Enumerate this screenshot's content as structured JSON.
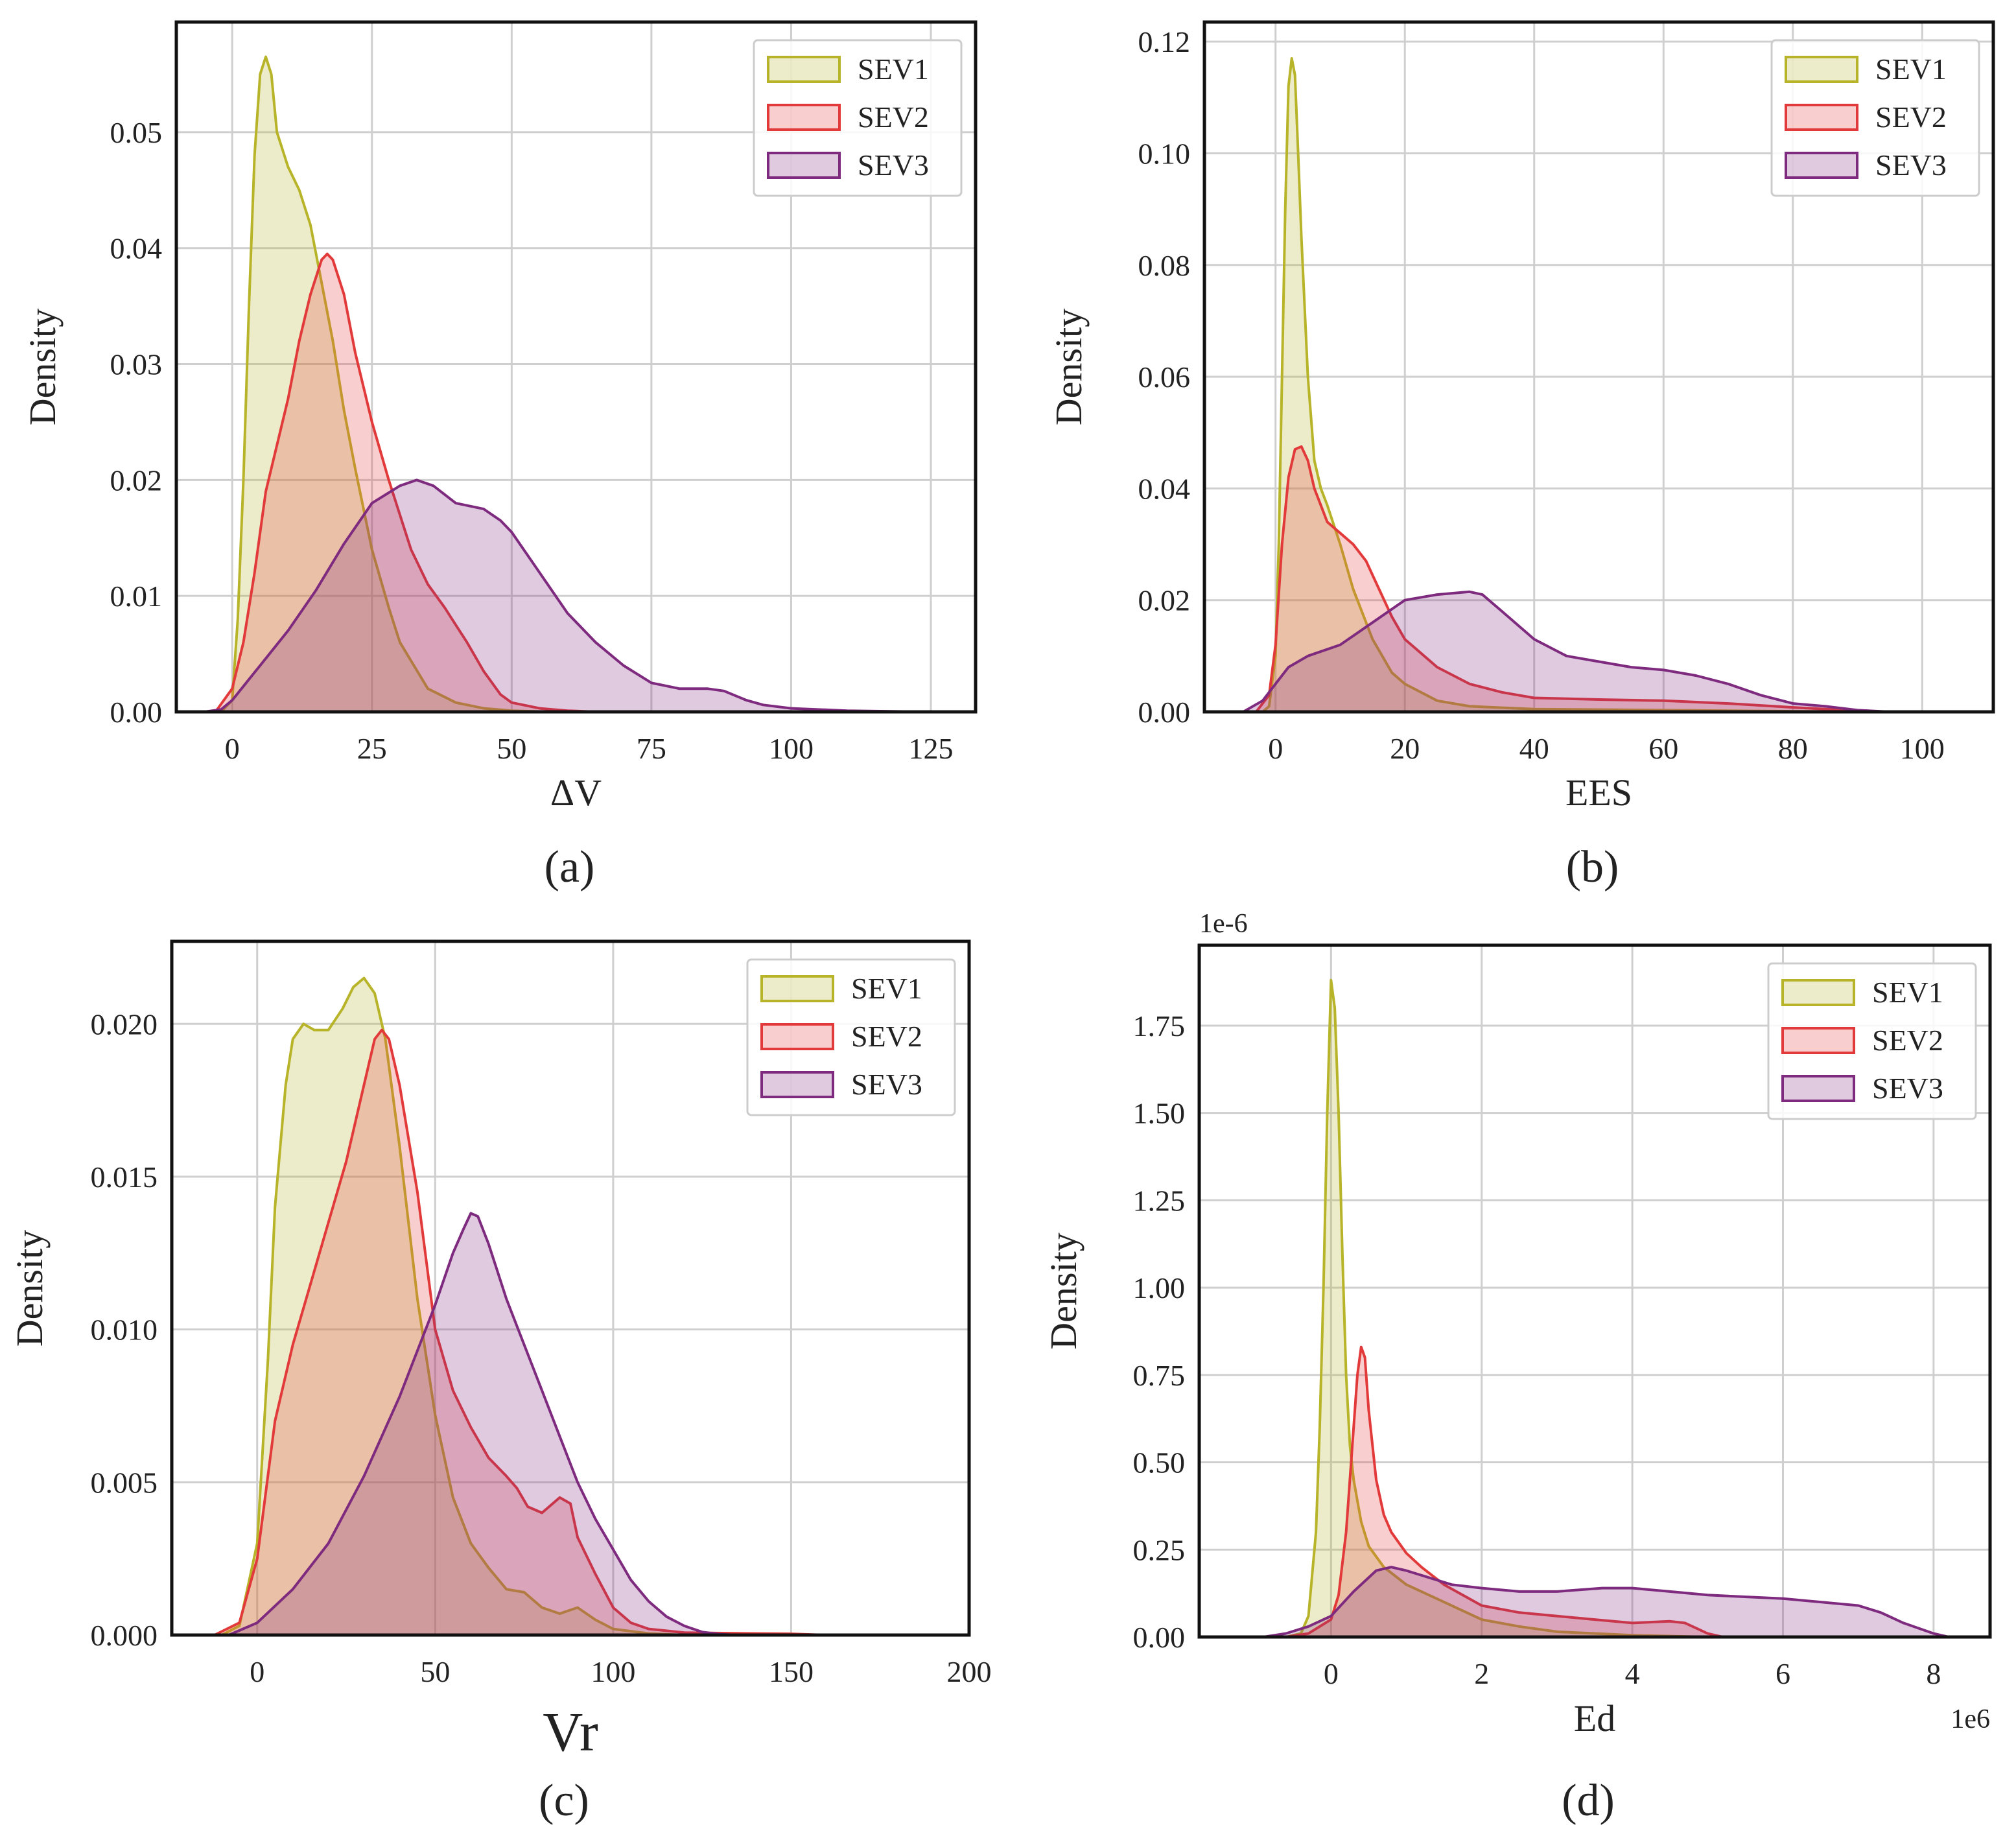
{
  "colors": {
    "SEV1": "#b8b42a",
    "SEV2": "#e23a3a",
    "SEV3": "#7e2a7e",
    "grid": "#cfcfcf",
    "frame": "#111111"
  },
  "chart_data": [
    {
      "id": "a",
      "type": "area",
      "panel_label": "(a)",
      "xlabel": "ΔV",
      "ylabel": "Density",
      "xlim": [
        -10,
        133
      ],
      "ylim": [
        0,
        0.0595
      ],
      "xticks": [
        0,
        25,
        50,
        75,
        100,
        125
      ],
      "xtick_labels": [
        "0",
        "25",
        "50",
        "75",
        "100",
        "125"
      ],
      "yticks": [
        0,
        0.01,
        0.02,
        0.03,
        0.04,
        0.05
      ],
      "ytick_labels": [
        "0.00",
        "0.01",
        "0.02",
        "0.03",
        "0.04",
        "0.05"
      ],
      "legend": {
        "position": "top-right",
        "labels": [
          "SEV1",
          "SEV2",
          "SEV3"
        ]
      },
      "series": [
        {
          "name": "SEV1",
          "x": [
            -2,
            0,
            1,
            2,
            3,
            4,
            5,
            6,
            7,
            8,
            10,
            12,
            14,
            16,
            18,
            20,
            22,
            25,
            28,
            30,
            35,
            40,
            45,
            50,
            55,
            60
          ],
          "y": [
            0,
            0.001,
            0.008,
            0.02,
            0.035,
            0.048,
            0.055,
            0.0565,
            0.055,
            0.05,
            0.047,
            0.045,
            0.042,
            0.037,
            0.032,
            0.026,
            0.021,
            0.014,
            0.009,
            0.006,
            0.002,
            0.0008,
            0.0003,
            0.0001,
            3e-05,
            0
          ]
        },
        {
          "name": "SEV2",
          "x": [
            -3,
            0,
            2,
            4,
            6,
            8,
            10,
            12,
            14,
            16,
            17,
            18,
            20,
            22,
            25,
            28,
            30,
            32,
            35,
            38,
            40,
            42,
            45,
            48,
            50,
            55,
            60,
            65
          ],
          "y": [
            0,
            0.002,
            0.006,
            0.012,
            0.019,
            0.023,
            0.027,
            0.032,
            0.036,
            0.039,
            0.0395,
            0.039,
            0.036,
            0.031,
            0.025,
            0.02,
            0.017,
            0.014,
            0.011,
            0.009,
            0.0075,
            0.006,
            0.0035,
            0.0015,
            0.0008,
            0.0003,
            0.0001,
            0
          ]
        },
        {
          "name": "SEV3",
          "x": [
            -5,
            -2,
            0,
            5,
            10,
            15,
            20,
            25,
            30,
            33,
            36,
            40,
            45,
            48,
            50,
            55,
            60,
            65,
            70,
            75,
            80,
            85,
            88,
            92,
            95,
            100,
            110,
            120,
            125
          ],
          "y": [
            0,
            0.0002,
            0.001,
            0.004,
            0.007,
            0.0105,
            0.0145,
            0.018,
            0.0195,
            0.02,
            0.0195,
            0.018,
            0.0175,
            0.0165,
            0.0155,
            0.012,
            0.0085,
            0.006,
            0.004,
            0.0025,
            0.002,
            0.002,
            0.0018,
            0.001,
            0.0006,
            0.0003,
            0.0001,
            3e-05,
            0
          ]
        }
      ]
    },
    {
      "id": "b",
      "type": "area",
      "panel_label": "(b)",
      "xlabel": "EES",
      "ylabel": "Density",
      "xlim": [
        -11,
        111
      ],
      "ylim": [
        0,
        0.1235
      ],
      "xticks": [
        0,
        20,
        40,
        60,
        80,
        100
      ],
      "xtick_labels": [
        "0",
        "20",
        "40",
        "60",
        "80",
        "100"
      ],
      "yticks": [
        0,
        0.02,
        0.04,
        0.06,
        0.08,
        0.1,
        0.12
      ],
      "ytick_labels": [
        "0.00",
        "0.02",
        "0.04",
        "0.06",
        "0.08",
        "0.10",
        "0.12"
      ],
      "legend": {
        "position": "top-right",
        "labels": [
          "SEV1",
          "SEV2",
          "SEV3"
        ]
      },
      "series": [
        {
          "name": "SEV1",
          "x": [
            -2,
            -1,
            0,
            0.5,
            1,
            1.5,
            2,
            2.5,
            3,
            3.5,
            4,
            5,
            6,
            7,
            8,
            10,
            12,
            15,
            18,
            20,
            25,
            30,
            40,
            60,
            80,
            100
          ],
          "y": [
            0,
            0.001,
            0.01,
            0.03,
            0.06,
            0.09,
            0.112,
            0.117,
            0.114,
            0.1,
            0.085,
            0.06,
            0.045,
            0.04,
            0.037,
            0.03,
            0.022,
            0.013,
            0.007,
            0.005,
            0.002,
            0.001,
            0.0005,
            0.0003,
            0.0001,
            0
          ]
        },
        {
          "name": "SEV2",
          "x": [
            -3,
            -1,
            0,
            1,
            2,
            3,
            4,
            5,
            6,
            8,
            10,
            12,
            14,
            16,
            18,
            20,
            25,
            30,
            35,
            40,
            50,
            60,
            70,
            80,
            90,
            95
          ],
          "y": [
            0,
            0.003,
            0.012,
            0.03,
            0.042,
            0.047,
            0.0475,
            0.045,
            0.04,
            0.034,
            0.032,
            0.03,
            0.027,
            0.022,
            0.017,
            0.013,
            0.008,
            0.005,
            0.0035,
            0.0025,
            0.0022,
            0.002,
            0.0015,
            0.0008,
            0.0002,
            0
          ]
        },
        {
          "name": "SEV3",
          "x": [
            -5,
            -2,
            0,
            2,
            5,
            10,
            15,
            20,
            25,
            30,
            32,
            35,
            40,
            45,
            50,
            55,
            60,
            65,
            70,
            75,
            80,
            85,
            90,
            95
          ],
          "y": [
            0,
            0.002,
            0.005,
            0.008,
            0.01,
            0.012,
            0.016,
            0.02,
            0.021,
            0.0215,
            0.021,
            0.018,
            0.013,
            0.01,
            0.009,
            0.008,
            0.0075,
            0.0065,
            0.005,
            0.003,
            0.0015,
            0.001,
            0.0003,
            0
          ]
        }
      ]
    },
    {
      "id": "c",
      "type": "area",
      "panel_label": "(c)",
      "xlabel": "Vr",
      "ylabel": "Density",
      "xlim": [
        -24,
        200
      ],
      "ylim": [
        0,
        0.0227
      ],
      "xticks": [
        0,
        50,
        100,
        150,
        200
      ],
      "xtick_labels": [
        "0",
        "50",
        "100",
        "150",
        "200"
      ],
      "yticks": [
        0,
        0.005,
        0.01,
        0.015,
        0.02
      ],
      "ytick_labels": [
        "0.000",
        "0.005",
        "0.010",
        "0.015",
        "0.020"
      ],
      "legend": {
        "position": "top-right",
        "labels": [
          "SEV1",
          "SEV2",
          "SEV3"
        ]
      },
      "series": [
        {
          "name": "SEV1",
          "x": [
            -10,
            -5,
            0,
            3,
            5,
            8,
            10,
            13,
            16,
            20,
            24,
            27,
            30,
            33,
            36,
            40,
            45,
            50,
            55,
            60,
            65,
            70,
            75,
            80,
            85,
            90,
            95,
            100,
            110,
            120
          ],
          "y": [
            0,
            0.0003,
            0.003,
            0.009,
            0.014,
            0.018,
            0.0195,
            0.02,
            0.0198,
            0.0198,
            0.0205,
            0.0212,
            0.0215,
            0.021,
            0.0195,
            0.016,
            0.011,
            0.0072,
            0.0045,
            0.003,
            0.0022,
            0.0015,
            0.0014,
            0.0009,
            0.0007,
            0.0009,
            0.0005,
            0.0002,
            5e-05,
            0
          ]
        },
        {
          "name": "SEV2",
          "x": [
            -12,
            -5,
            0,
            5,
            10,
            15,
            20,
            25,
            30,
            33,
            35,
            37,
            40,
            45,
            50,
            55,
            60,
            65,
            70,
            73,
            76,
            80,
            82,
            85,
            88,
            90,
            95,
            100,
            105,
            110,
            120,
            140,
            150,
            160
          ],
          "y": [
            0,
            0.0004,
            0.0025,
            0.007,
            0.0095,
            0.0115,
            0.0135,
            0.0155,
            0.018,
            0.0195,
            0.0198,
            0.0195,
            0.018,
            0.0145,
            0.01,
            0.008,
            0.0068,
            0.0058,
            0.0052,
            0.0048,
            0.0042,
            0.004,
            0.0042,
            0.0045,
            0.0043,
            0.0032,
            0.002,
            0.0009,
            0.0004,
            0.0002,
            8e-05,
            5e-05,
            4e-05,
            0
          ]
        },
        {
          "name": "SEV3",
          "x": [
            -8,
            0,
            10,
            20,
            30,
            40,
            50,
            55,
            58,
            60,
            62,
            65,
            70,
            75,
            80,
            85,
            90,
            95,
            100,
            105,
            110,
            115,
            120,
            125,
            130,
            135
          ],
          "y": [
            0,
            0.0004,
            0.0015,
            0.003,
            0.0052,
            0.0078,
            0.0108,
            0.0125,
            0.0133,
            0.0138,
            0.0137,
            0.0128,
            0.011,
            0.0095,
            0.008,
            0.0065,
            0.005,
            0.0038,
            0.0028,
            0.0018,
            0.0011,
            0.0006,
            0.0003,
            0.0001,
            3e-05,
            0
          ]
        }
      ]
    },
    {
      "id": "d",
      "type": "area",
      "panel_label": "(d)",
      "xlabel": "Ed",
      "ylabel": "Density",
      "x_offset_label": "1e6",
      "y_offset_label": "1e-6",
      "xlim": [
        -1.75,
        8.75
      ],
      "ylim": [
        0,
        1.98
      ],
      "xticks": [
        0,
        2,
        4,
        6,
        8
      ],
      "xtick_labels": [
        "0",
        "2",
        "4",
        "6",
        "8"
      ],
      "yticks": [
        0,
        0.25,
        0.5,
        0.75,
        1.0,
        1.25,
        1.5,
        1.75
      ],
      "ytick_labels": [
        "0.00",
        "0.25",
        "0.50",
        "0.75",
        "1.00",
        "1.25",
        "1.50",
        "1.75"
      ],
      "legend": {
        "position": "top-right",
        "labels": [
          "SEV1",
          "SEV2",
          "SEV3"
        ]
      },
      "series": [
        {
          "name": "SEV1",
          "x": [
            -0.6,
            -0.4,
            -0.3,
            -0.2,
            -0.15,
            -0.1,
            -0.05,
            0,
            0.05,
            0.1,
            0.15,
            0.2,
            0.25,
            0.3,
            0.4,
            0.5,
            0.7,
            1.0,
            1.5,
            2.0,
            2.5,
            3.0,
            4.0,
            5.0
          ],
          "y": [
            0,
            0.01,
            0.06,
            0.3,
            0.6,
            1.0,
            1.5,
            1.88,
            1.8,
            1.5,
            1.1,
            0.75,
            0.55,
            0.45,
            0.33,
            0.26,
            0.2,
            0.15,
            0.1,
            0.05,
            0.03,
            0.015,
            0.005,
            0
          ]
        },
        {
          "name": "SEV2",
          "x": [
            -0.6,
            -0.3,
            0,
            0.1,
            0.2,
            0.3,
            0.35,
            0.4,
            0.45,
            0.5,
            0.6,
            0.7,
            0.8,
            1.0,
            1.2,
            1.5,
            2.0,
            2.5,
            3.0,
            3.5,
            4.0,
            4.5,
            4.7,
            5.0,
            5.2
          ],
          "y": [
            0,
            0.01,
            0.05,
            0.12,
            0.3,
            0.6,
            0.75,
            0.83,
            0.8,
            0.65,
            0.45,
            0.35,
            0.3,
            0.24,
            0.2,
            0.15,
            0.09,
            0.07,
            0.06,
            0.05,
            0.04,
            0.045,
            0.04,
            0.01,
            0
          ]
        },
        {
          "name": "SEV3",
          "x": [
            -0.9,
            -0.6,
            -0.3,
            0,
            0.3,
            0.6,
            0.8,
            1.0,
            1.3,
            1.6,
            2.0,
            2.5,
            3.0,
            3.6,
            4.0,
            4.5,
            5.0,
            6.0,
            7.0,
            7.3,
            7.6,
            8.0,
            8.2
          ],
          "y": [
            0,
            0.01,
            0.03,
            0.06,
            0.13,
            0.19,
            0.2,
            0.19,
            0.17,
            0.15,
            0.14,
            0.13,
            0.13,
            0.14,
            0.14,
            0.13,
            0.12,
            0.11,
            0.09,
            0.07,
            0.04,
            0.01,
            0
          ]
        }
      ]
    }
  ]
}
